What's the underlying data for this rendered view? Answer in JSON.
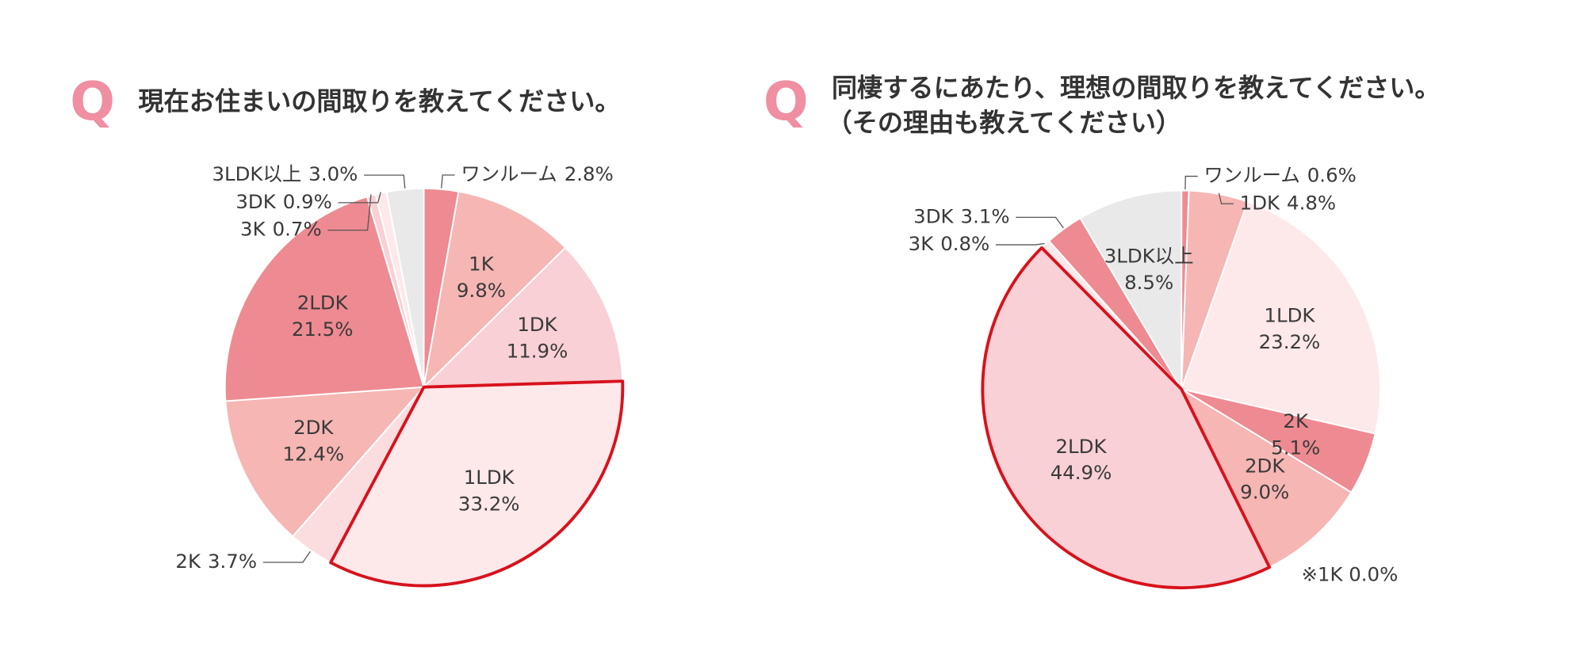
{
  "chart_data": [
    {
      "type": "pie",
      "marker": "Q",
      "title": "現在お住まいの間取りを教えてください。",
      "categories": [
        "ワンルーム",
        "1K",
        "1DK",
        "1LDK",
        "2K",
        "2DK",
        "2LDK",
        "3K",
        "3DK",
        "3LDK以上"
      ],
      "values": [
        2.8,
        9.8,
        11.9,
        33.2,
        3.7,
        12.4,
        21.5,
        0.7,
        0.9,
        3.0
      ],
      "value_labels": [
        "2.8%",
        "9.8%",
        "11.9%",
        "33.2%",
        "3.7%",
        "12.4%",
        "21.5%",
        "0.7%",
        "0.9%",
        "3.0%"
      ],
      "colors": [
        "#ee8a92",
        "#f5b6b4",
        "#f8d0d5",
        "#fde8ea",
        "#fbdde0",
        "#f5b6b4",
        "#ee8a92",
        "#f8d0d5",
        "#fde8ea",
        "#e9e9e9"
      ],
      "highlight_index": 3
    },
    {
      "type": "pie",
      "marker": "Q",
      "title": "同棲するにあたり、理想の間取りを教えてください。",
      "subtitle": "（その理由も教えてください）",
      "categories": [
        "ワンルーム",
        "1DK",
        "1LDK",
        "2K",
        "2DK",
        "2LDK",
        "3K",
        "3DK",
        "3LDK以上"
      ],
      "values": [
        0.6,
        4.8,
        23.2,
        5.1,
        9.0,
        44.9,
        0.8,
        3.1,
        8.5
      ],
      "value_labels": [
        "0.6%",
        "4.8%",
        "23.2%",
        "5.1%",
        "9.0%",
        "44.9%",
        "0.8%",
        "3.1%",
        "8.5%"
      ],
      "colors": [
        "#ee8a92",
        "#f5b6b4",
        "#fde8ea",
        "#ee8a92",
        "#f5b6b4",
        "#f8d0d5",
        "#fde8ea",
        "#ee8a92",
        "#e9e9e9"
      ],
      "highlight_index": 5,
      "note": "※1K 0.0%"
    }
  ]
}
